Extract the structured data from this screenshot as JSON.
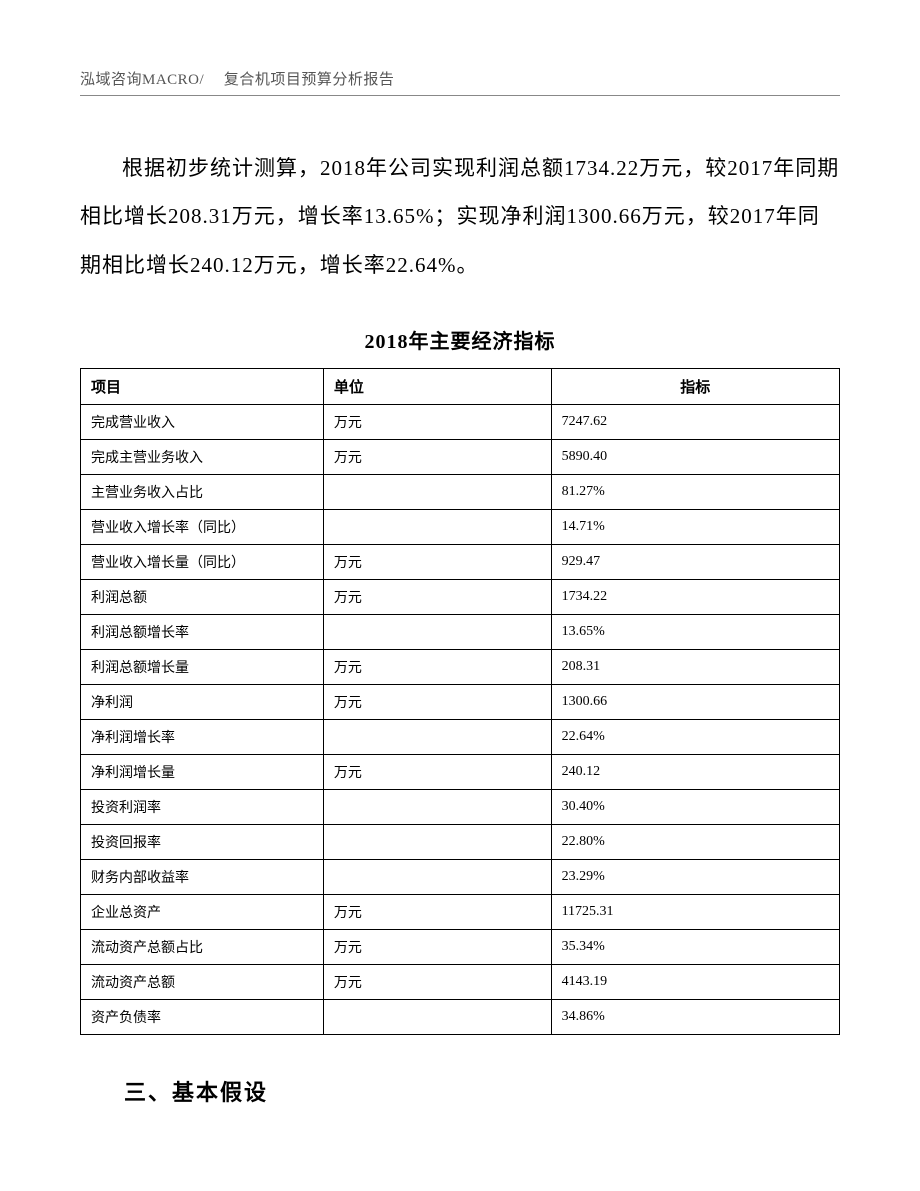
{
  "header": {
    "text": "泓域咨询MACRO/　 复合机项目预算分析报告"
  },
  "paragraph": {
    "text": "根据初步统计测算，2018年公司实现利润总额1734.22万元，较2017年同期相比增长208.31万元，增长率13.65%；实现净利润1300.66万元，较2017年同期相比增长240.12万元，增长率22.64%。"
  },
  "table": {
    "title": "2018年主要经济指标",
    "columns": {
      "item": "项目",
      "unit": "单位",
      "value": "指标"
    },
    "rows": [
      {
        "item": "完成营业收入",
        "unit": "万元",
        "value": "7247.62"
      },
      {
        "item": "完成主营业务收入",
        "unit": "万元",
        "value": "5890.40"
      },
      {
        "item": "主营业务收入占比",
        "unit": "",
        "value": "81.27%"
      },
      {
        "item": "营业收入增长率（同比）",
        "unit": "",
        "value": "14.71%"
      },
      {
        "item": "营业收入增长量（同比）",
        "unit": "万元",
        "value": "929.47"
      },
      {
        "item": "利润总额",
        "unit": "万元",
        "value": "1734.22"
      },
      {
        "item": "利润总额增长率",
        "unit": "",
        "value": "13.65%"
      },
      {
        "item": "利润总额增长量",
        "unit": "万元",
        "value": "208.31"
      },
      {
        "item": "净利润",
        "unit": "万元",
        "value": "1300.66"
      },
      {
        "item": "净利润增长率",
        "unit": "",
        "value": "22.64%"
      },
      {
        "item": "净利润增长量",
        "unit": "万元",
        "value": "240.12"
      },
      {
        "item": "投资利润率",
        "unit": "",
        "value": "30.40%"
      },
      {
        "item": "投资回报率",
        "unit": "",
        "value": "22.80%"
      },
      {
        "item": "财务内部收益率",
        "unit": "",
        "value": "23.29%"
      },
      {
        "item": "企业总资产",
        "unit": "万元",
        "value": "11725.31"
      },
      {
        "item": "流动资产总额占比",
        "unit": "万元",
        "value": "35.34%"
      },
      {
        "item": "流动资产总额",
        "unit": "万元",
        "value": "4143.19"
      },
      {
        "item": "资产负债率",
        "unit": "",
        "value": "34.86%"
      }
    ]
  },
  "section": {
    "heading": "三、基本假设"
  }
}
